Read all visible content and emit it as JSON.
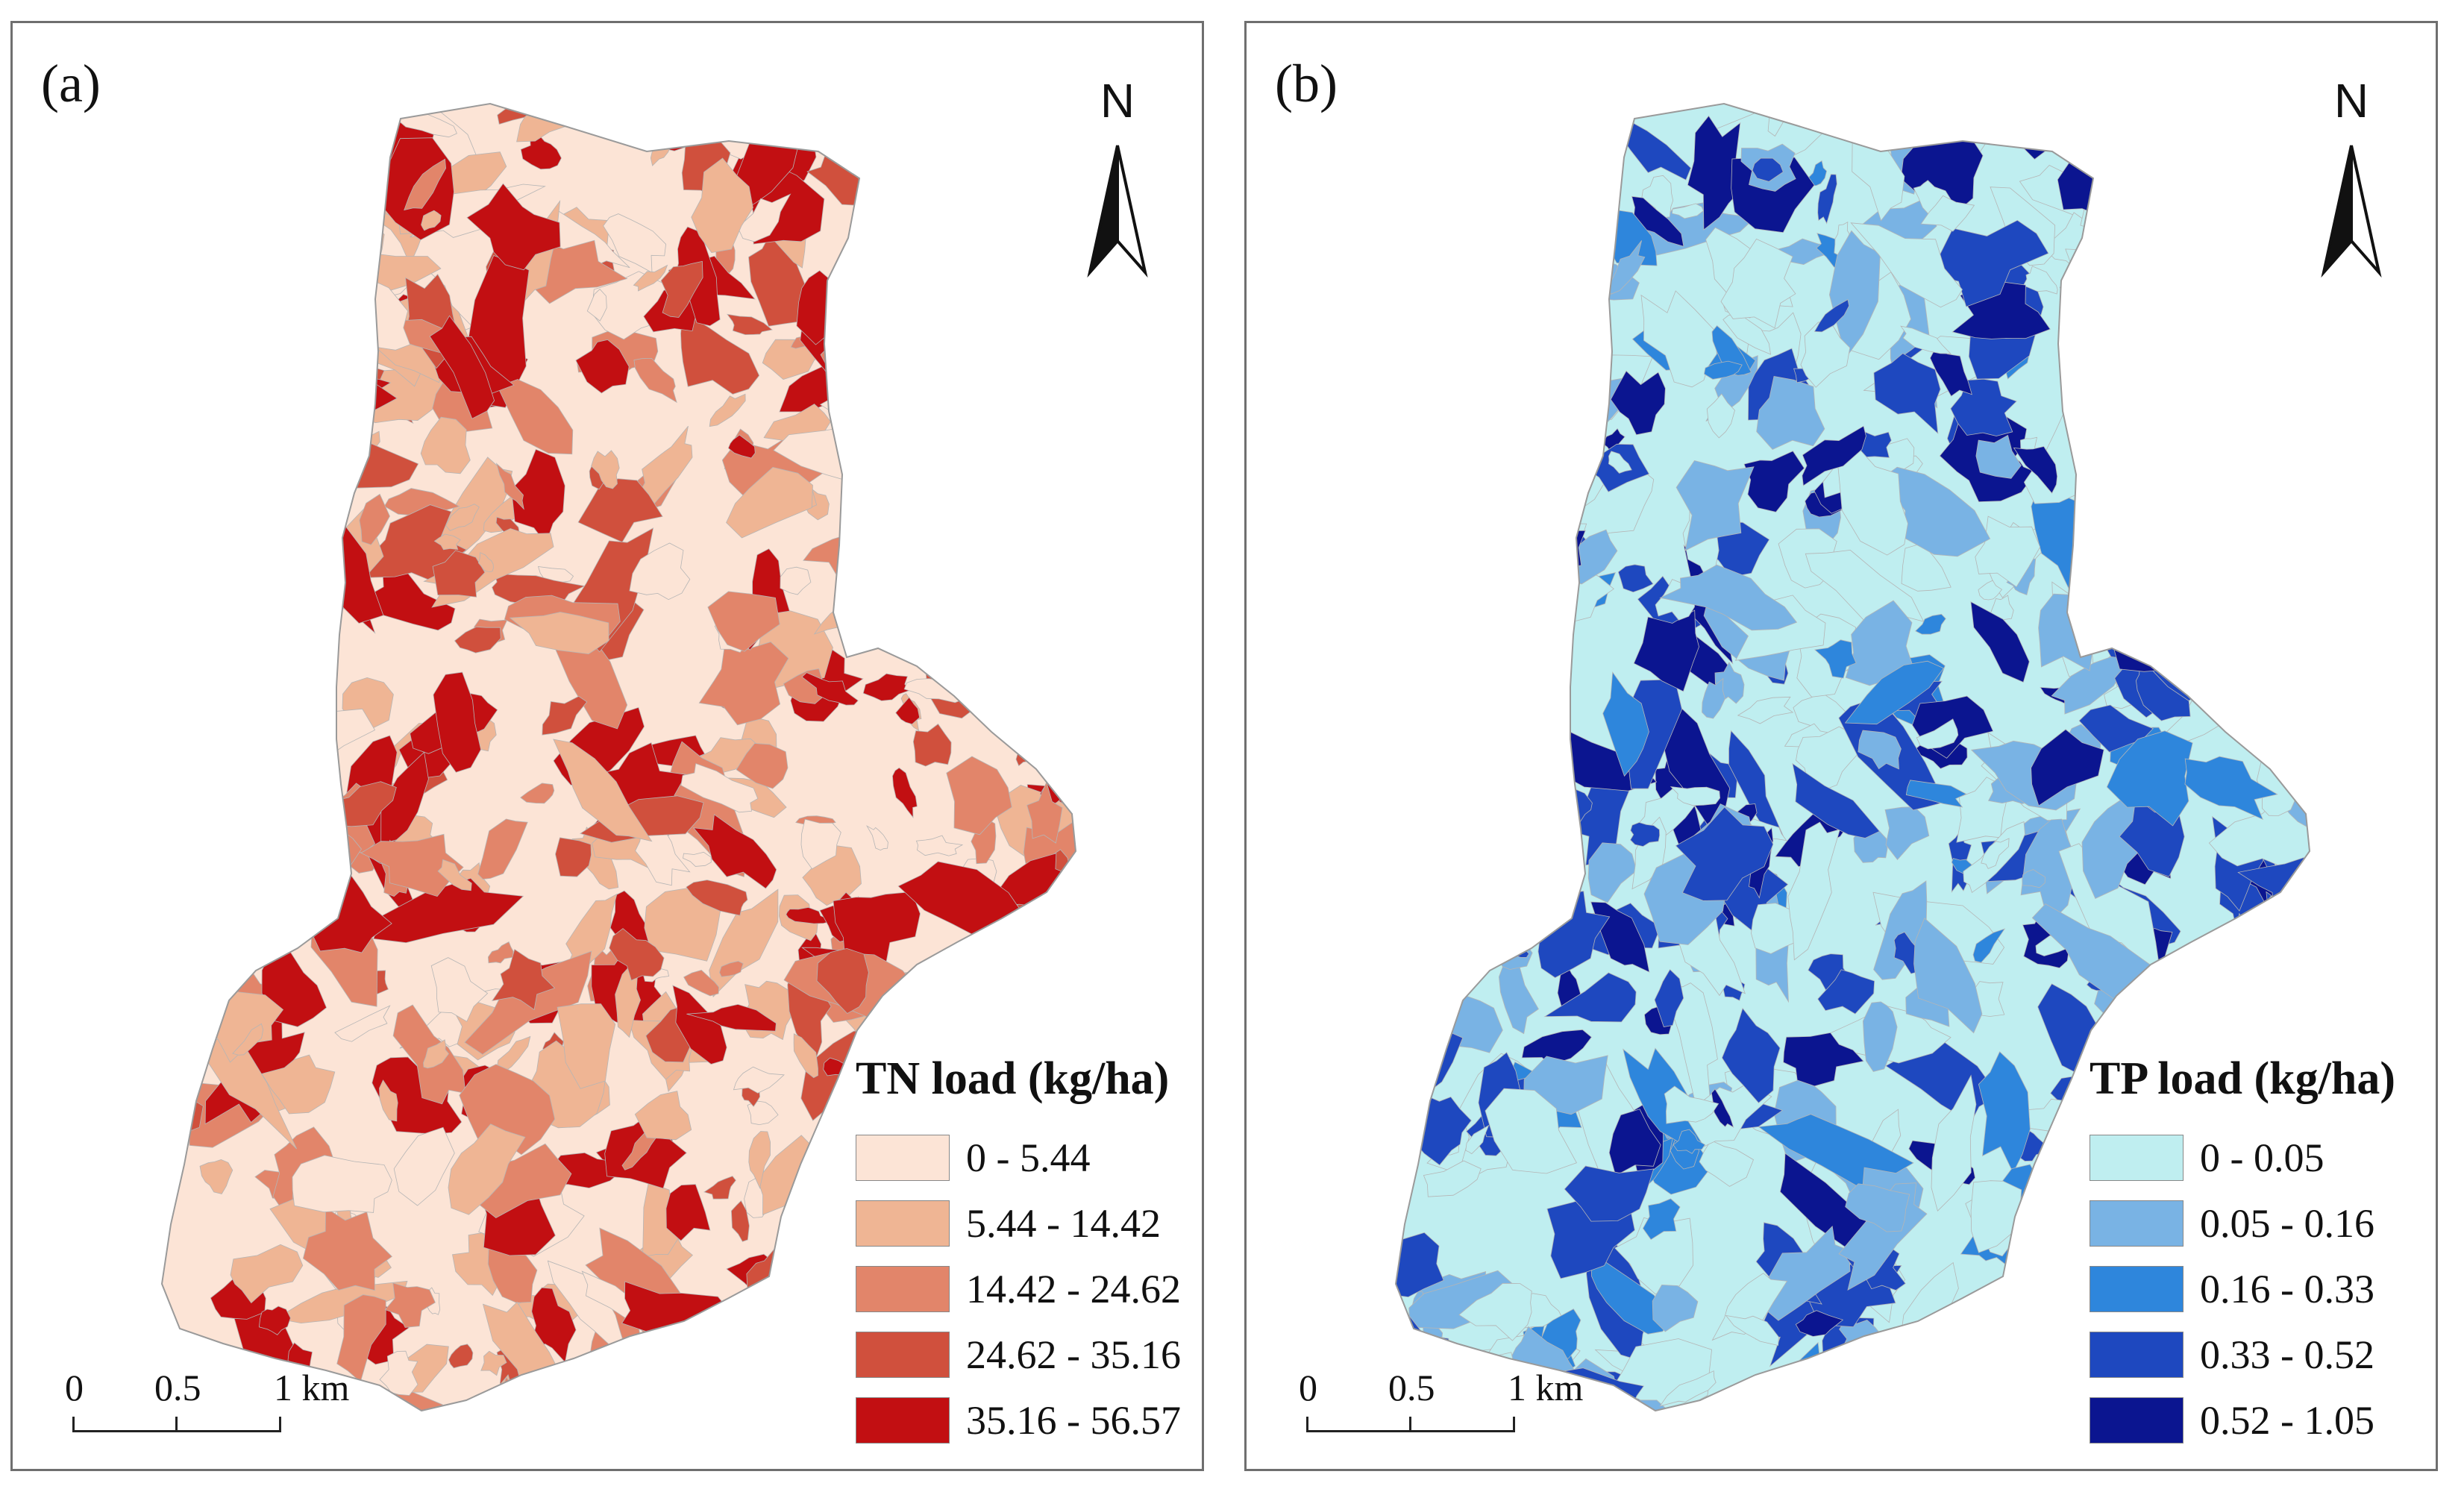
{
  "panels": [
    {
      "label": "(a)",
      "north_symbol": "N",
      "scale": {
        "labels": [
          "0",
          "0.5",
          "1 km"
        ]
      },
      "legend": {
        "title": "TN load (kg/ha)",
        "classes": [
          {
            "label": "0 - 5.44",
            "color": "#fce4d6"
          },
          {
            "label": "5.44 - 14.42",
            "color": "#efb594"
          },
          {
            "label": "14.42 - 24.62",
            "color": "#e2856a"
          },
          {
            "label": "24.62 - 35.16",
            "color": "#d0503d"
          },
          {
            "label": "35.16 - 56.57",
            "color": "#c20f12"
          }
        ]
      }
    },
    {
      "label": "(b)",
      "north_symbol": "N",
      "scale": {
        "labels": [
          "0",
          "0.5",
          "1 km"
        ]
      },
      "legend": {
        "title": "TP load (kg/ha)",
        "classes": [
          {
            "label": "0 - 0.05",
            "color": "#bfeef0"
          },
          {
            "label": "0.05 - 0.16",
            "color": "#79b3e4"
          },
          {
            "label": "0.16 - 0.33",
            "color": "#2e86dc"
          },
          {
            "label": "0.33 - 0.52",
            "color": "#1e48bf"
          },
          {
            "label": "0.52 - 1.05",
            "color": "#0b1590"
          }
        ]
      }
    }
  ]
}
